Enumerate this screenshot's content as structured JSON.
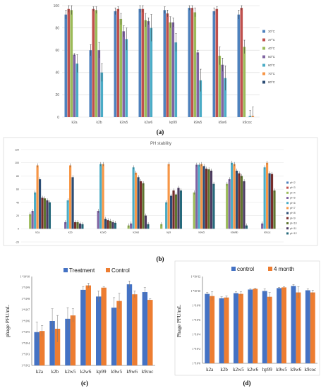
{
  "chart_data": [
    {
      "id": "a",
      "type": "bar",
      "caption": "(a)",
      "categories": [
        "k2a",
        "k2b",
        "k2w5",
        "k2w6",
        "kp99",
        "k9w5",
        "k9w6",
        "k9coc"
      ],
      "ylim": [
        0,
        100
      ],
      "yticks": [
        0,
        20,
        40,
        60,
        80,
        100
      ],
      "grid": true,
      "legend_position": "right",
      "series": [
        {
          "name": "30°C",
          "color": "#4e81bd",
          "values": [
            92,
            60,
            95,
            97,
            96,
            98,
            95,
            92
          ],
          "err": [
            4,
            5,
            3,
            3,
            3,
            2,
            3,
            4
          ]
        },
        {
          "name": "37°C",
          "color": "#c0504d",
          "values": [
            97,
            97,
            97,
            97,
            93,
            98,
            97,
            98
          ],
          "err": [
            3,
            2,
            2,
            3,
            3,
            2,
            2,
            2
          ]
        },
        {
          "name": "40°C",
          "color": "#9bbb59",
          "values": [
            96,
            96,
            88,
            87,
            85,
            94,
            55,
            63
          ],
          "err": [
            4,
            3,
            5,
            6,
            5,
            4,
            8,
            6
          ]
        },
        {
          "name": "50°C",
          "color": "#8064a2",
          "values": [
            56,
            60,
            77,
            86,
            85,
            58,
            47,
            0
          ],
          "err": [
            1,
            7,
            5,
            3,
            4,
            2,
            6,
            0
          ]
        },
        {
          "name": "60°C",
          "color": "#4bacc6",
          "values": [
            48,
            40,
            70,
            80,
            67,
            33,
            35,
            1
          ],
          "err": [
            8,
            8,
            10,
            12,
            8,
            10,
            11,
            5
          ]
        },
        {
          "name": "70°C",
          "color": "#f79646",
          "values": [
            0,
            0,
            0,
            0,
            0,
            0,
            0,
            1
          ],
          "err": [
            0,
            0,
            0,
            0,
            0,
            0,
            0,
            8
          ]
        },
        {
          "name": "80°C",
          "color": "#2c4d75",
          "values": [
            0,
            0,
            0,
            0,
            0,
            0,
            0,
            0
          ],
          "err": [
            0,
            0,
            0,
            0,
            0,
            0,
            0,
            0
          ]
        }
      ]
    },
    {
      "id": "b",
      "type": "bar",
      "caption": "(b)",
      "title": "PH stability",
      "categories": [
        "k2a",
        "k2b",
        "k2w5",
        "k2w6",
        "kp9",
        "k9w5",
        "k9w6b",
        "k9coc"
      ],
      "ylim": [
        -20,
        120
      ],
      "yticks": [
        -20,
        0,
        20,
        40,
        60,
        80,
        100,
        120
      ],
      "grid": true,
      "legend_position": "right",
      "series": [
        {
          "name": "pH 2",
          "color": "#4e81bd",
          "values": [
            0,
            0,
            0,
            0,
            0,
            0,
            0,
            0
          ]
        },
        {
          "name": "pH 3",
          "color": "#c0504d",
          "values": [
            0,
            0,
            0,
            0,
            0,
            0,
            0,
            0
          ]
        },
        {
          "name": "pH 4",
          "color": "#9bbb59",
          "values": [
            22,
            0,
            0,
            5,
            7,
            55,
            68,
            0
          ]
        },
        {
          "name": "pH 5",
          "color": "#8064a2",
          "values": [
            27,
            10,
            27,
            8,
            0,
            97,
            75,
            8
          ]
        },
        {
          "name": "pH 6",
          "color": "#4bacc6",
          "values": [
            55,
            43,
            98,
            93,
            40,
            97,
            100,
            93
          ]
        },
        {
          "name": "pH 7",
          "color": "#f79646",
          "values": [
            96,
            96,
            98,
            85,
            98,
            98,
            98,
            100
          ]
        },
        {
          "name": "pH 8",
          "color": "#2c4d75",
          "values": [
            75,
            78,
            15,
            78,
            50,
            95,
            88,
            84
          ]
        },
        {
          "name": "pH 9",
          "color": "#772c2a",
          "values": [
            47,
            10,
            13,
            72,
            58,
            91,
            84,
            83
          ]
        },
        {
          "name": "pH 10",
          "color": "#5f7530",
          "values": [
            46,
            10,
            12,
            69,
            52,
            90,
            80,
            58
          ]
        },
        {
          "name": "pH 11",
          "color": "#4d3b62",
          "values": [
            43,
            8,
            10,
            20,
            62,
            88,
            72,
            0
          ]
        },
        {
          "name": "pH 12",
          "color": "#276a7c",
          "values": [
            40,
            7,
            9,
            7,
            58,
            68,
            5,
            0
          ]
        }
      ]
    },
    {
      "id": "c",
      "type": "bar",
      "caption": "(c)",
      "ylabel": "phage PFU/mL",
      "scale": "log",
      "categories": [
        "k2a",
        "k2b",
        "k2w5",
        "k2w6",
        "kp99",
        "k9w5",
        "k9w6",
        "k9coc"
      ],
      "yticks": [
        "1 *10^2",
        "1 *10^4",
        "1 *10^6",
        "1 *10^8",
        "1 *10^10"
      ],
      "yticks_extra": [
        "1 *10^3",
        "1 *10^5",
        "1 *10^7",
        "1 *10^9"
      ],
      "ylim_exp": [
        2,
        10
      ],
      "legend_position": "top",
      "series": [
        {
          "name": "Treatment",
          "color": "#4472c4",
          "values_exp": [
            5.0,
            6.0,
            6.2,
            8.8,
            8.2,
            7.2,
            9.3,
            8.6
          ],
          "err": [
            0.9,
            1.1,
            1.0,
            0.3,
            0.5,
            0.9,
            0.3,
            0.4
          ]
        },
        {
          "name": "Control",
          "color": "#ed7d31",
          "values_exp": [
            5.1,
            5.3,
            6.5,
            9.2,
            9.0,
            7.8,
            8.4,
            7.9
          ],
          "err": [
            0.5,
            1.2,
            0.6,
            0.2,
            0.1,
            0.7,
            0.3,
            0.1
          ]
        }
      ]
    },
    {
      "id": "d",
      "type": "bar",
      "caption": "(d)",
      "ylabel": "Phage PFU/mL",
      "scale": "log",
      "categories": [
        "k2a",
        "k2b",
        "k2w5",
        "k2w6",
        "hp99",
        "k9w5",
        "k9w6",
        "k9coc"
      ],
      "yticks": [
        "1 *10^0",
        "1 *10^2",
        "1 *10^4",
        "1 *10^6",
        "1 *10^8",
        "1 *10^10",
        "1 *10^12"
      ],
      "ylim_exp": [
        0,
        12
      ],
      "legend_position": "top",
      "series": [
        {
          "name": "control",
          "color": "#4472c4",
          "values_exp": [
            9.6,
            9.0,
            9.7,
            10.2,
            10.0,
            10.4,
            10.7,
            10.1
          ],
          "err": [
            0.2,
            0.2,
            0.2,
            0.1,
            0.3,
            0.1,
            0.2,
            0.2
          ]
        },
        {
          "name": "4 month",
          "color": "#ed7d31",
          "values_exp": [
            9.3,
            9.1,
            9.6,
            10.3,
            9.2,
            10.5,
            9.8,
            9.8
          ],
          "err": [
            0.6,
            0.2,
            0.3,
            0.1,
            0.6,
            0.1,
            0.8,
            0.3
          ]
        }
      ]
    }
  ]
}
